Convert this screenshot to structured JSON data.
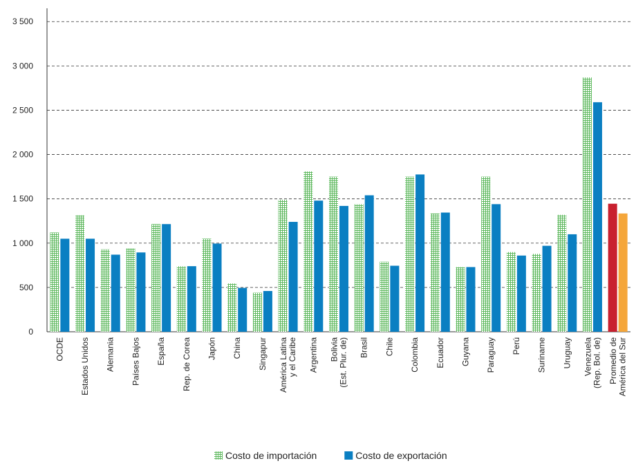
{
  "chart_data": {
    "type": "bar",
    "categories": [
      "OCDE",
      "Estados Unidos",
      "Alemania",
      "Países Bajos",
      "España",
      "Rep. de Corea",
      "Japón",
      "China",
      "Singapur",
      "América Latina\ny el Caribe",
      "Argentina",
      "Bolivia\n(Est. Plur. de)",
      "Brasil",
      "Chile",
      "Colombia",
      "Ecuador",
      "Guyana",
      "Paraguay",
      "Perú",
      "Suriname",
      "Uruguay",
      "Venezuela\n(Rep. Bol. de)",
      "Promedio de\nAmérica del Sur"
    ],
    "series": [
      {
        "name": "Costo de importación",
        "color": "#5cb85c",
        "pattern": "grid",
        "values": [
          1120,
          1315,
          930,
          940,
          1215,
          740,
          1050,
          545,
          440,
          1490,
          1810,
          1750,
          1440,
          790,
          1750,
          1335,
          730,
          1750,
          900,
          880,
          1320,
          2870,
          1445
        ],
        "colors": [
          "#5cb85c",
          "#5cb85c",
          "#5cb85c",
          "#5cb85c",
          "#5cb85c",
          "#5cb85c",
          "#5cb85c",
          "#5cb85c",
          "#5cb85c",
          "#5cb85c",
          "#5cb85c",
          "#5cb85c",
          "#5cb85c",
          "#5cb85c",
          "#5cb85c",
          "#5cb85c",
          "#5cb85c",
          "#5cb85c",
          "#5cb85c",
          "#5cb85c",
          "#5cb85c",
          "#5cb85c",
          "#c8202f"
        ]
      },
      {
        "name": "Costo de exportación",
        "color": "#0a7fc2",
        "pattern": "solid",
        "values": [
          1050,
          1050,
          870,
          895,
          1215,
          740,
          995,
          495,
          460,
          1240,
          1480,
          1420,
          1540,
          745,
          1775,
          1345,
          730,
          1440,
          860,
          970,
          1100,
          2590,
          1335
        ],
        "colors": [
          "#0a7fc2",
          "#0a7fc2",
          "#0a7fc2",
          "#0a7fc2",
          "#0a7fc2",
          "#0a7fc2",
          "#0a7fc2",
          "#0a7fc2",
          "#0a7fc2",
          "#0a7fc2",
          "#0a7fc2",
          "#0a7fc2",
          "#0a7fc2",
          "#0a7fc2",
          "#0a7fc2",
          "#0a7fc2",
          "#0a7fc2",
          "#0a7fc2",
          "#0a7fc2",
          "#0a7fc2",
          "#0a7fc2",
          "#0a7fc2",
          "#f5a63a"
        ]
      }
    ],
    "ylim": [
      0,
      3650
    ],
    "yticks": [
      0,
      500,
      {
        "value": 1000,
        "label": "1 000"
      },
      {
        "value": 1500,
        "label": "1 500"
      },
      {
        "value": 2000,
        "label": "2 000"
      },
      {
        "value": 2500,
        "label": "2 500"
      },
      {
        "value": 3000,
        "label": "3 000"
      },
      {
        "value": 3500,
        "label": "3 500"
      }
    ],
    "grid": true,
    "legend": "bottom"
  }
}
